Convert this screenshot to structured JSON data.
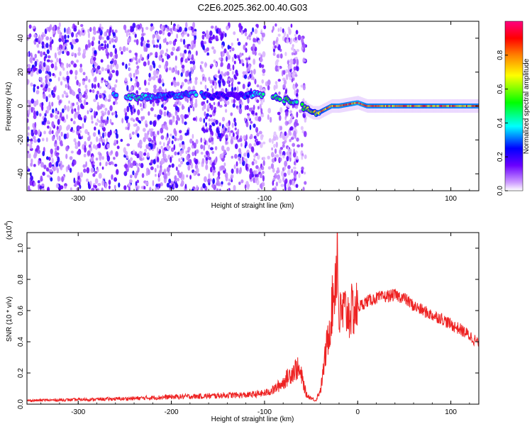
{
  "page": {
    "title": "C2E6.2025.362.00.40.G03"
  },
  "chart_data": [
    {
      "type": "heatmap",
      "title": "C2E6.2025.362.00.40.G03",
      "xlabel": "Height of straight line (km)",
      "ylabel": "Frequency (Hz)",
      "xlim": [
        -355,
        130
      ],
      "ylim": [
        -50,
        50
      ],
      "xticks": [
        -300,
        -200,
        -100,
        0,
        100
      ],
      "xtick_labels": [
        "-300",
        "-200",
        "-100",
        "0",
        "100"
      ],
      "yticks": [
        -40,
        -20,
        0,
        20,
        40
      ],
      "ytick_labels": [
        "-40",
        "-20",
        "0",
        "20",
        "40"
      ],
      "colorbar": {
        "label": "Normalized spectral amplitude",
        "range": [
          0,
          1
        ],
        "ticks": [
          0.0,
          0.2,
          0.4,
          0.6,
          0.8
        ],
        "tick_labels": [
          "0.0",
          "0.2",
          "0.4",
          "0.6",
          "0.8"
        ],
        "colors": [
          "#ffffff",
          "#cc99ff",
          "#6a00ff",
          "#0000ff",
          "#00ffff",
          "#00ff00",
          "#ffff00",
          "#ff8000",
          "#ff0000",
          "#ff0080"
        ]
      },
      "noise_band": {
        "x_range": [
          -355,
          -55
        ],
        "y_range": [
          -50,
          48
        ]
      },
      "gaps_x": [
        [
          -258,
          -250
        ],
        [
          -172,
          -168
        ],
        [
          -100,
          -92
        ],
        [
          -82,
          -80
        ],
        [
          -64,
          -60
        ]
      ],
      "ridge": {
        "x": [
          -262,
          -240,
          -200,
          -175,
          -160,
          -130,
          -110,
          -95,
          -80,
          -65,
          -55,
          -48,
          -42,
          -35,
          -28,
          -20,
          -10,
          0,
          10,
          30,
          60,
          100,
          130
        ],
        "y": [
          7,
          5,
          6,
          7,
          6,
          6,
          7,
          6,
          4,
          2,
          -2,
          -4,
          -4,
          -2,
          0,
          0,
          1,
          2,
          0,
          0,
          0,
          0,
          0
        ],
        "peak_amplitude": [
          0.4,
          0.45,
          0.3,
          0.4,
          0.3,
          0.2,
          0.4,
          0.5,
          0.55,
          0.5,
          0.6,
          0.7,
          0.8,
          0.85,
          0.9,
          0.9,
          0.9,
          0.95,
          0.9,
          0.9,
          0.88,
          0.9,
          0.9
        ]
      }
    },
    {
      "type": "line",
      "xlabel": "Height of straight line (km)",
      "ylabel": "SNR (10 * v/v)",
      "yscale_label": "(x10",
      "yscale_exponent": "4",
      "xlim": [
        -355,
        130
      ],
      "ylim": [
        0,
        1.1
      ],
      "xticks": [
        -300,
        -200,
        -100,
        0,
        100
      ],
      "xtick_labels": [
        "-300",
        "-200",
        "-100",
        "0",
        "100"
      ],
      "yticks": [
        0.0,
        0.2,
        0.4,
        0.6,
        0.8,
        1.0
      ],
      "ytick_labels": [
        "0.0",
        "0.2",
        "0.4",
        "0.6",
        "0.8",
        "1.0"
      ],
      "series": [
        {
          "color": "#ee2222",
          "x": [
            -355,
            -300,
            -250,
            -200,
            -160,
            -140,
            -120,
            -100,
            -90,
            -80,
            -70,
            -65,
            -60,
            -55,
            -45,
            -40,
            -35,
            -30,
            -25,
            -22,
            -20,
            -15,
            -10,
            0,
            10,
            20,
            30,
            40,
            50,
            60,
            70,
            80,
            90,
            100,
            110,
            120,
            130
          ],
          "y": [
            0.02,
            0.025,
            0.03,
            0.04,
            0.045,
            0.05,
            0.05,
            0.06,
            0.08,
            0.12,
            0.18,
            0.2,
            0.15,
            0.05,
            0.02,
            0.08,
            0.3,
            0.5,
            0.75,
            0.95,
            0.55,
            0.6,
            0.58,
            0.62,
            0.66,
            0.68,
            0.69,
            0.7,
            0.68,
            0.63,
            0.6,
            0.57,
            0.55,
            0.51,
            0.48,
            0.44,
            0.39
          ],
          "noise": 0.08,
          "spike": {
            "x": -22,
            "y": 1.1
          }
        }
      ]
    }
  ]
}
